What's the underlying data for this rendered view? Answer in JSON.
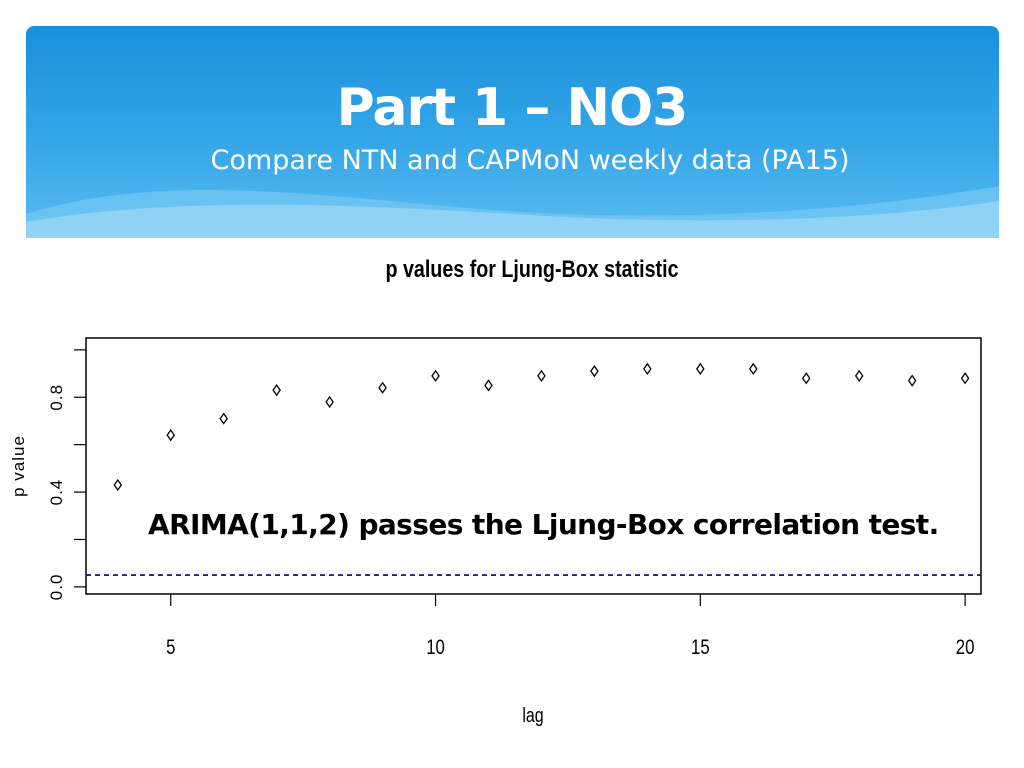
{
  "slide": {
    "title": "Part 1 – NO3",
    "subtitle": "Compare NTN and CAPMoN weekly data (PA15)",
    "annotation": "ARIMA(1,1,2) passes the Ljung-Box correlation test."
  },
  "colors": {
    "banner_top": "#1a8fdc",
    "banner_bottom": "#5bbcf0",
    "reference_line": "#00008b",
    "points": "#000000"
  },
  "chart_data": {
    "type": "scatter",
    "title": "p values for Ljung-Box statistic",
    "xlabel": "lag",
    "ylabel": "p value",
    "x": [
      4,
      5,
      6,
      7,
      8,
      9,
      10,
      11,
      12,
      13,
      14,
      15,
      16,
      17,
      18,
      19,
      20
    ],
    "y": [
      0.43,
      0.64,
      0.71,
      0.83,
      0.78,
      0.84,
      0.89,
      0.85,
      0.89,
      0.91,
      0.92,
      0.92,
      0.92,
      0.88,
      0.89,
      0.87,
      0.88
    ],
    "xlim": [
      3.4,
      20.3
    ],
    "ylim": [
      -0.03,
      1.05
    ],
    "x_ticks": [
      5,
      10,
      15,
      20
    ],
    "y_ticks": [
      0.0,
      0.2,
      0.4,
      0.6,
      0.8,
      1.0
    ],
    "y_tick_labels": [
      "0.0",
      "0.4",
      "0.8"
    ],
    "reference_line": {
      "y": 0.05,
      "style": "dashed"
    },
    "grid": false,
    "marker": "diamond"
  }
}
